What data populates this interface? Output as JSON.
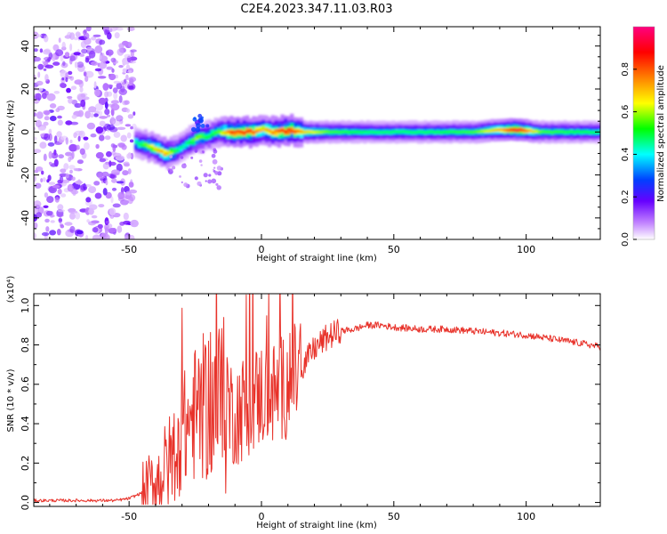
{
  "figure": {
    "title": "C2E4.2023.347.11.03.R03"
  },
  "chart_data": [
    {
      "type": "heatmap",
      "xlabel": "Height of straight line (km)",
      "ylabel": "Frequency (Hz)",
      "xlim": [
        -86,
        128
      ],
      "ylim": [
        -50,
        49
      ],
      "xticks": [
        -50,
        0,
        50,
        100
      ],
      "yticks": [
        -40,
        -20,
        0,
        20,
        40
      ],
      "colorbar": {
        "label": "Normalized spectral amplitude",
        "range": [
          0,
          1
        ],
        "ticks": [
          "0.0",
          "0.2",
          "0.4",
          "0.6",
          "0.8"
        ],
        "colormap": [
          "#ffffff",
          "#c080ff",
          "#6600ff",
          "#0040ff",
          "#00ffff",
          "#00ff00",
          "#ffff00",
          "#ff8000",
          "#ff0000",
          "#ff0080"
        ]
      },
      "noise_region": {
        "x_range": [
          -86,
          -48
        ],
        "freq_range": [
          -50,
          49
        ],
        "amplitude": "low, scattered"
      },
      "ridge": {
        "description": "dominant frequency track",
        "points": [
          {
            "x": -48,
            "freq": -5,
            "amp": 0.45
          },
          {
            "x": -45,
            "freq": -6,
            "amp": 0.55
          },
          {
            "x": -40,
            "freq": -8,
            "amp": 0.7
          },
          {
            "x": -37,
            "freq": -10,
            "amp": 0.75
          },
          {
            "x": -33,
            "freq": -9,
            "amp": 0.5
          },
          {
            "x": -30,
            "freq": -6,
            "amp": 0.45
          },
          {
            "x": -25,
            "freq": -3,
            "amp": 0.6
          },
          {
            "x": -21,
            "freq": -2,
            "amp": 0.5
          },
          {
            "x": -17,
            "freq": 0,
            "amp": 0.55
          },
          {
            "x": -12,
            "freq": 0,
            "amp": 0.85
          },
          {
            "x": -5,
            "freq": 0,
            "amp": 0.85
          },
          {
            "x": 0,
            "freq": 1,
            "amp": 0.7
          },
          {
            "x": 5,
            "freq": 0,
            "amp": 0.8
          },
          {
            "x": 10,
            "freq": 1,
            "amp": 0.9
          },
          {
            "x": 15,
            "freq": 0,
            "amp": 0.7
          },
          {
            "x": 25,
            "freq": 0,
            "amp": 0.55
          },
          {
            "x": 40,
            "freq": 0,
            "amp": 0.5
          },
          {
            "x": 60,
            "freq": 0,
            "amp": 0.5
          },
          {
            "x": 80,
            "freq": 0,
            "amp": 0.55
          },
          {
            "x": 90,
            "freq": 1,
            "amp": 0.75
          },
          {
            "x": 96,
            "freq": 1,
            "amp": 0.95
          },
          {
            "x": 105,
            "freq": 0,
            "amp": 0.55
          },
          {
            "x": 128,
            "freq": 0,
            "amp": 0.5
          }
        ]
      }
    },
    {
      "type": "line",
      "xlabel": "Height of straight line (km)",
      "ylabel": "SNR (10 * v/v)",
      "y_multiplier": "(x10⁴)",
      "xlim": [
        -86,
        128
      ],
      "ylim": [
        -0.02,
        1.06
      ],
      "xticks": [
        -50,
        0,
        50,
        100
      ],
      "yticks": [
        "0.0",
        "0.2",
        "0.4",
        "0.6",
        "0.8",
        "1.0"
      ],
      "series": [
        {
          "color": "#e8322a",
          "x": [
            -86,
            -70,
            -55,
            -50,
            -45,
            -40,
            -35,
            -30,
            -25,
            -20,
            -15,
            -10,
            -5,
            0,
            5,
            10,
            15,
            20,
            25,
            30,
            35,
            40,
            45,
            50,
            60,
            70,
            80,
            90,
            100,
            110,
            120,
            128
          ],
          "y": [
            0.01,
            0.01,
            0.01,
            0.02,
            0.05,
            0.1,
            0.2,
            0.35,
            0.45,
            0.5,
            0.5,
            0.45,
            0.5,
            0.55,
            0.55,
            0.6,
            0.68,
            0.78,
            0.84,
            0.87,
            0.88,
            0.9,
            0.9,
            0.89,
            0.88,
            0.88,
            0.87,
            0.86,
            0.85,
            0.83,
            0.81,
            0.79
          ]
        }
      ]
    }
  ]
}
